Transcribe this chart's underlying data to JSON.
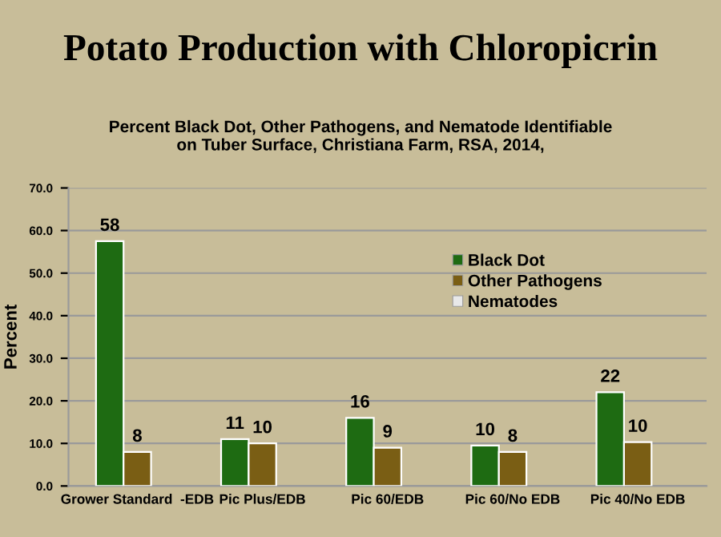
{
  "chart_data": {
    "type": "bar",
    "title": "Potato Production with Chloropicrin",
    "subtitle": "Percent Black Dot, Other Pathogens, and Nematode Identifiable\non Tuber Surface, Christiana Farm, RSA, 2014,",
    "ylabel": "Percent",
    "categories": [
      "Grower Standard  -EDB",
      "Pic Plus/EDB",
      "Pic 60/EDB",
      "Pic 60/No EDB",
      "Pic 40/No EDB"
    ],
    "series": [
      {
        "name": "Black Dot",
        "color": "#1e6b12",
        "values": [
          57.5,
          11,
          16,
          9.5,
          22
        ],
        "value_labels": [
          "58",
          "11",
          "16",
          "10",
          "22"
        ]
      },
      {
        "name": "Other Pathogens",
        "color": "#7a5e14",
        "values": [
          8,
          10,
          9,
          8,
          10.3
        ],
        "value_labels": [
          "8",
          "10",
          "9",
          "8",
          "10"
        ]
      },
      {
        "name": "Nematodes",
        "color": "#e8e8e8",
        "values": [
          null,
          null,
          null,
          null,
          null
        ],
        "value_labels": [
          null,
          null,
          null,
          null,
          null
        ]
      }
    ],
    "ylim": [
      0,
      70
    ],
    "yticks": [
      {
        "value": 0,
        "label": "0.0"
      },
      {
        "value": 10,
        "label": "10.0"
      },
      {
        "value": 20,
        "label": "20.0"
      },
      {
        "value": 30,
        "label": "30.0"
      },
      {
        "value": 40,
        "label": "40.0"
      },
      {
        "value": 50,
        "label": "50.0"
      },
      {
        "value": 60,
        "label": "60.0"
      },
      {
        "value": 70,
        "label": "70.0"
      }
    ],
    "grid": "y",
    "legend": "top right"
  }
}
